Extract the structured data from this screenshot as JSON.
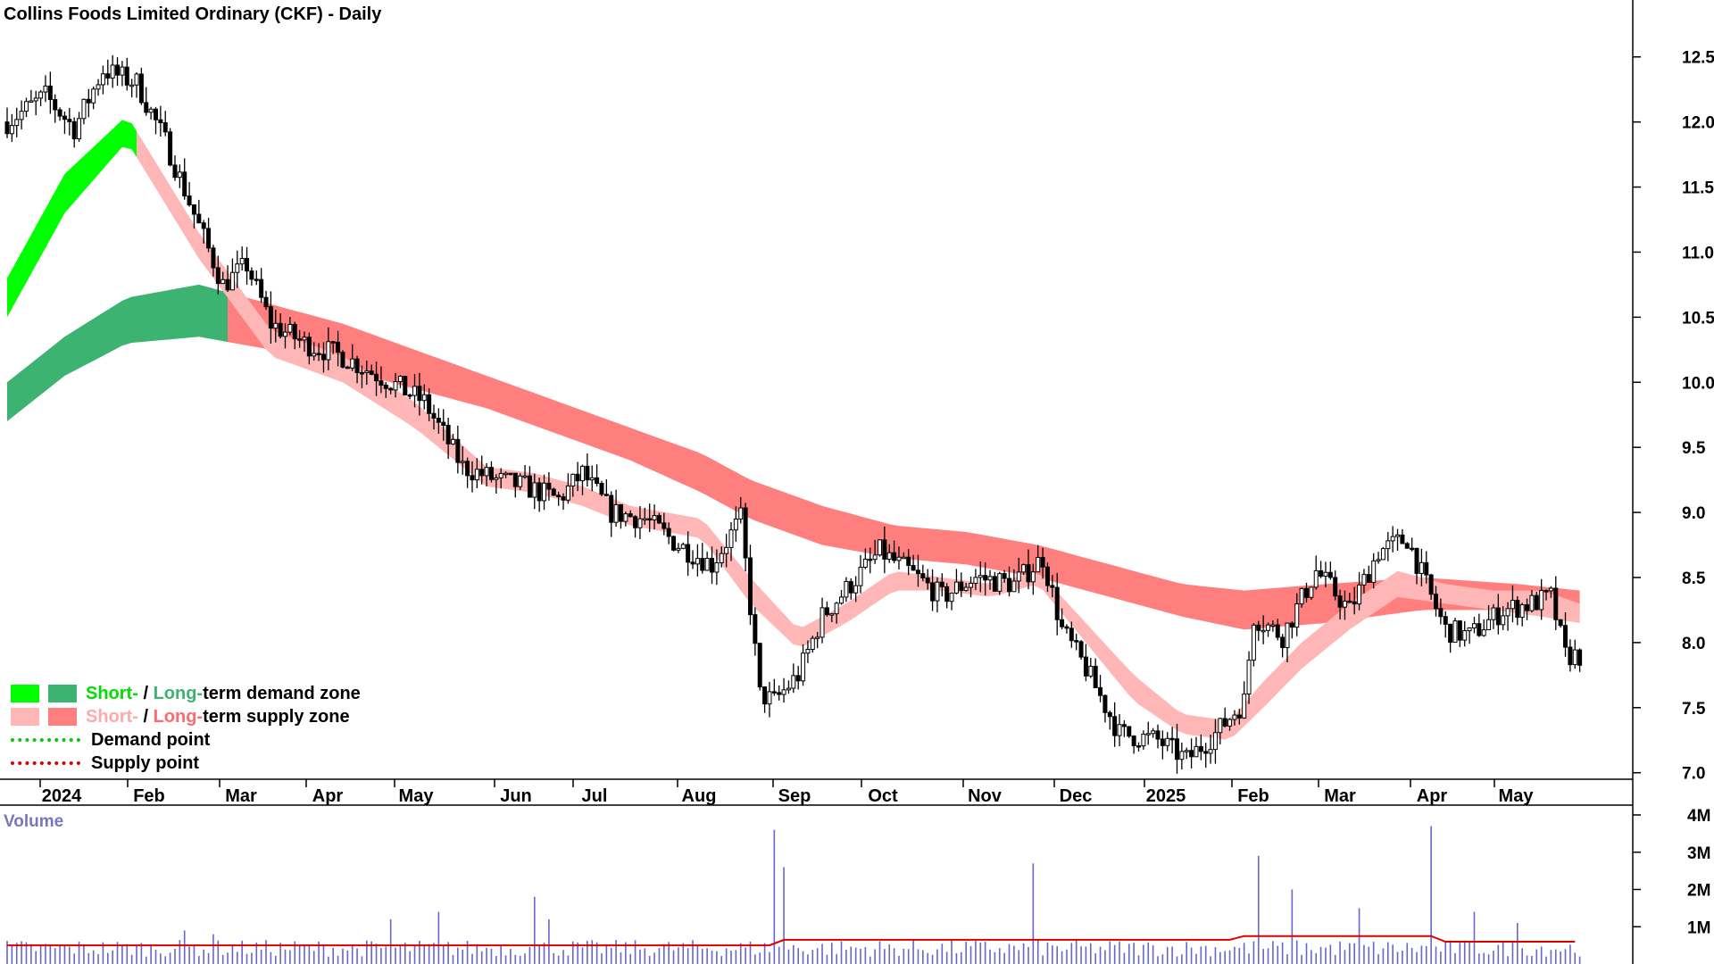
{
  "title": "Collins Foods Limited Ordinary (CKF) - Daily",
  "volume_label": "Volume",
  "colors": {
    "short_demand": "#00ff00",
    "long_demand": "#3cb371",
    "short_supply": "#ffb6b6",
    "long_supply": "#ff7f7f",
    "overlap": "#ff6b1a",
    "demand_point": "#00cc00",
    "supply_point": "#dd0000",
    "volume_bar": "#6666cc",
    "volume_avg": "#dd0000"
  },
  "legend": {
    "row1_a": "Short-",
    "row1_b": " / ",
    "row1_c": "Long-",
    "row1_d": "term demand zone",
    "row2_a": "Short-",
    "row2_b": " / ",
    "row2_c": "Long-",
    "row2_d": "term supply zone",
    "row3": "Demand point",
    "row4": "Supply point"
  },
  "chart_data": {
    "type": "candlestick",
    "title": "Collins Foods Limited Ordinary (CKF) - Daily",
    "y_ticks": [
      "12.5",
      "12.0",
      "11.5",
      "11.0",
      "10.5",
      "10.0",
      "9.5",
      "9.0",
      "8.5",
      "8.0",
      "7.5",
      "7.0"
    ],
    "ylim": [
      6.95,
      12.8
    ],
    "x_ticks": [
      "2024",
      "Feb",
      "Mar",
      "Apr",
      "May",
      "Jun",
      "Jul",
      "Aug",
      "Sep",
      "Oct",
      "Nov",
      "Dec",
      "2025",
      "Feb",
      "Mar",
      "Apr",
      "May"
    ],
    "price_path": [
      [
        0,
        12.0
      ],
      [
        8,
        12.2
      ],
      [
        14,
        11.95
      ],
      [
        20,
        12.4
      ],
      [
        27,
        12.3
      ],
      [
        33,
        11.85
      ],
      [
        40,
        11.2
      ],
      [
        45,
        10.75
      ],
      [
        50,
        10.9
      ],
      [
        55,
        10.45
      ],
      [
        62,
        10.3
      ],
      [
        70,
        10.2
      ],
      [
        80,
        10.0
      ],
      [
        87,
        9.85
      ],
      [
        95,
        9.35
      ],
      [
        102,
        9.25
      ],
      [
        108,
        9.2
      ],
      [
        115,
        9.1
      ],
      [
        120,
        9.3
      ],
      [
        126,
        9.0
      ],
      [
        133,
        8.95
      ],
      [
        140,
        8.75
      ],
      [
        147,
        8.6
      ],
      [
        153,
        8.95
      ],
      [
        157,
        7.6
      ],
      [
        160,
        7.55
      ],
      [
        165,
        7.75
      ],
      [
        170,
        8.2
      ],
      [
        176,
        8.45
      ],
      [
        182,
        8.7
      ],
      [
        188,
        8.55
      ],
      [
        195,
        8.35
      ],
      [
        202,
        8.5
      ],
      [
        210,
        8.45
      ],
      [
        216,
        8.65
      ],
      [
        220,
        8.1
      ],
      [
        225,
        7.8
      ],
      [
        232,
        7.3
      ],
      [
        240,
        7.25
      ],
      [
        246,
        7.1
      ],
      [
        252,
        7.3
      ],
      [
        258,
        7.55
      ],
      [
        260,
        8.2
      ],
      [
        266,
        8.05
      ],
      [
        273,
        8.55
      ],
      [
        280,
        8.25
      ],
      [
        286,
        8.7
      ],
      [
        292,
        8.8
      ],
      [
        297,
        8.35
      ],
      [
        300,
        8.1
      ],
      [
        305,
        8.05
      ],
      [
        312,
        8.25
      ],
      [
        318,
        8.3
      ],
      [
        322,
        8.35
      ],
      [
        325,
        7.9
      ],
      [
        328,
        7.9
      ]
    ],
    "bands": {
      "short_upper": [
        [
          0,
          10.8
        ],
        [
          12,
          11.6
        ],
        [
          25,
          12.05
        ],
        [
          40,
          11.15
        ],
        [
          55,
          10.4
        ],
        [
          70,
          10.2
        ],
        [
          85,
          9.85
        ],
        [
          100,
          9.35
        ],
        [
          110,
          9.3
        ],
        [
          120,
          9.2
        ],
        [
          130,
          9.05
        ],
        [
          145,
          8.95
        ],
        [
          155,
          8.5
        ],
        [
          165,
          8.1
        ],
        [
          175,
          8.3
        ],
        [
          185,
          8.55
        ],
        [
          195,
          8.5
        ],
        [
          205,
          8.45
        ],
        [
          215,
          8.55
        ],
        [
          225,
          8.15
        ],
        [
          235,
          7.75
        ],
        [
          245,
          7.45
        ],
        [
          255,
          7.4
        ],
        [
          262,
          7.7
        ],
        [
          270,
          8.0
        ],
        [
          280,
          8.3
        ],
        [
          290,
          8.55
        ],
        [
          300,
          8.45
        ],
        [
          310,
          8.4
        ],
        [
          320,
          8.4
        ],
        [
          328,
          8.3
        ]
      ],
      "short_lower": [
        [
          0,
          10.5
        ],
        [
          12,
          11.3
        ],
        [
          25,
          11.85
        ],
        [
          40,
          10.95
        ],
        [
          55,
          10.2
        ],
        [
          70,
          10.0
        ],
        [
          85,
          9.65
        ],
        [
          100,
          9.2
        ],
        [
          110,
          9.15
        ],
        [
          120,
          9.05
        ],
        [
          130,
          8.9
        ],
        [
          145,
          8.8
        ],
        [
          155,
          8.3
        ],
        [
          165,
          7.95
        ],
        [
          175,
          8.15
        ],
        [
          185,
          8.4
        ],
        [
          195,
          8.4
        ],
        [
          205,
          8.35
        ],
        [
          215,
          8.45
        ],
        [
          225,
          8.0
        ],
        [
          235,
          7.55
        ],
        [
          245,
          7.3
        ],
        [
          255,
          7.25
        ],
        [
          262,
          7.5
        ],
        [
          270,
          7.8
        ],
        [
          280,
          8.1
        ],
        [
          290,
          8.35
        ],
        [
          300,
          8.3
        ],
        [
          310,
          8.25
        ],
        [
          320,
          8.2
        ],
        [
          328,
          8.15
        ]
      ],
      "long_upper": [
        [
          0,
          10.0
        ],
        [
          12,
          10.35
        ],
        [
          25,
          10.65
        ],
        [
          40,
          10.75
        ],
        [
          55,
          10.6
        ],
        [
          70,
          10.45
        ],
        [
          85,
          10.25
        ],
        [
          100,
          10.05
        ],
        [
          115,
          9.85
        ],
        [
          130,
          9.65
        ],
        [
          145,
          9.45
        ],
        [
          155,
          9.25
        ],
        [
          170,
          9.05
        ],
        [
          185,
          8.9
        ],
        [
          200,
          8.85
        ],
        [
          215,
          8.75
        ],
        [
          230,
          8.6
        ],
        [
          245,
          8.45
        ],
        [
          258,
          8.4
        ],
        [
          275,
          8.45
        ],
        [
          295,
          8.5
        ],
        [
          315,
          8.45
        ],
        [
          328,
          8.4
        ]
      ],
      "long_lower": [
        [
          0,
          9.7
        ],
        [
          12,
          10.05
        ],
        [
          25,
          10.3
        ],
        [
          40,
          10.35
        ],
        [
          55,
          10.25
        ],
        [
          70,
          10.1
        ],
        [
          85,
          9.95
        ],
        [
          100,
          9.8
        ],
        [
          115,
          9.6
        ],
        [
          130,
          9.4
        ],
        [
          145,
          9.15
        ],
        [
          155,
          8.95
        ],
        [
          170,
          8.75
        ],
        [
          185,
          8.65
        ],
        [
          200,
          8.6
        ],
        [
          215,
          8.5
        ],
        [
          230,
          8.35
        ],
        [
          245,
          8.2
        ],
        [
          258,
          8.1
        ],
        [
          275,
          8.15
        ],
        [
          295,
          8.25
        ],
        [
          315,
          8.25
        ],
        [
          328,
          8.2
        ]
      ]
    },
    "volume_ticks": [
      "4M",
      "3M",
      "2M",
      "1M"
    ],
    "volume_max": 4.0,
    "volume_avg": 0.5,
    "volume_spikes": [
      [
        37,
        0.9
      ],
      [
        43,
        0.8
      ],
      [
        80,
        1.2
      ],
      [
        90,
        1.4
      ],
      [
        110,
        1.8
      ],
      [
        113,
        1.2
      ],
      [
        160,
        3.6
      ],
      [
        162,
        2.6
      ],
      [
        214,
        2.7
      ],
      [
        261,
        2.9
      ],
      [
        268,
        2.0
      ],
      [
        282,
        1.5
      ],
      [
        297,
        3.7
      ],
      [
        306,
        1.4
      ],
      [
        315,
        1.1
      ]
    ]
  }
}
